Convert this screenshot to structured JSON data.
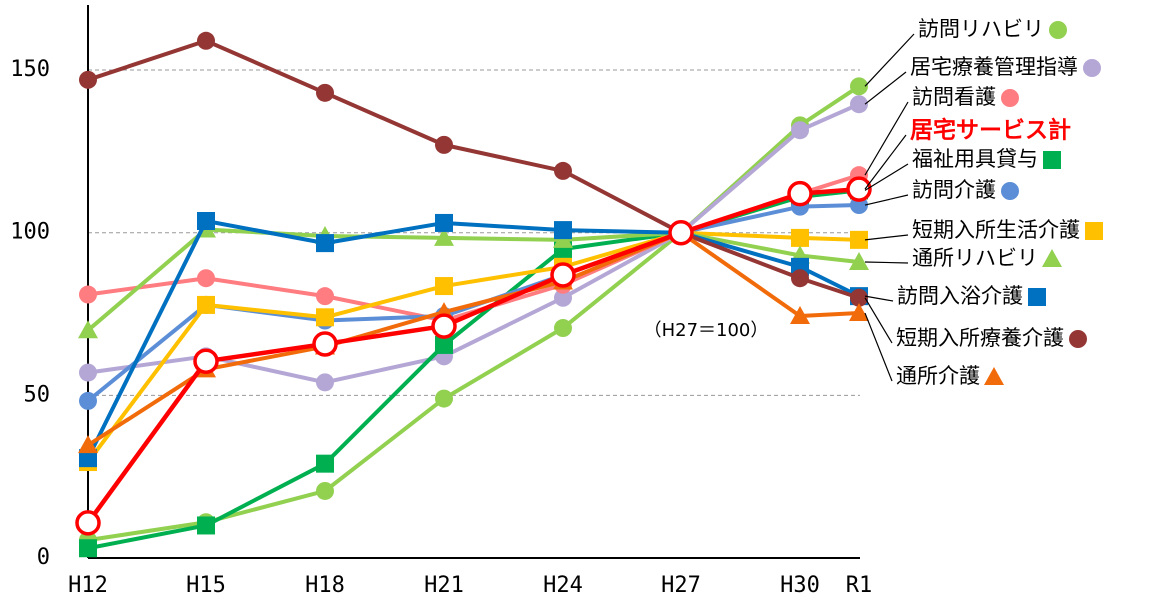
{
  "chart_data": {
    "type": "line",
    "annotation": "（H27＝100）",
    "categories": [
      "H12",
      "H15",
      "H18",
      "H21",
      "H24",
      "H27",
      "H30",
      "R1"
    ],
    "ylim": [
      0,
      170
    ],
    "yticks": [
      0,
      50,
      100,
      150
    ],
    "grid": true,
    "series": [
      {
        "name": "訪問リハビリ",
        "color": "#92d050",
        "marker": "circle",
        "values": [
          5.5,
          11,
          20.6,
          49,
          70.7,
          100,
          133,
          145
        ]
      },
      {
        "name": "居宅療養管理指導",
        "color": "#b4a7d6",
        "marker": "circle",
        "values": [
          57,
          62,
          54,
          62,
          80,
          100,
          131.5,
          139.5
        ]
      },
      {
        "name": "訪問看護",
        "color": "#ff7c80",
        "marker": "circle",
        "values": [
          81,
          86,
          80.5,
          73,
          84,
          100,
          112,
          117.7
        ]
      },
      {
        "name": "居宅サービス計",
        "color": "#ff0000",
        "marker": "open-circle",
        "values": [
          10.8,
          60.5,
          65.8,
          71.3,
          87,
          100,
          112,
          113.4
        ]
      },
      {
        "name": "福祉用具貸与",
        "color": "#00b050",
        "marker": "square",
        "values": [
          3,
          10,
          29,
          65.5,
          95,
          100,
          111,
          113
        ]
      },
      {
        "name": "訪問介護",
        "color": "#5b8ed6",
        "marker": "circle",
        "values": [
          48.3,
          77.8,
          73,
          74.4,
          87,
          100,
          108,
          108.5
        ]
      },
      {
        "name": "短期入所生活介護",
        "color": "#ffc000",
        "marker": "square",
        "values": [
          29.5,
          77.8,
          74,
          83.6,
          89.5,
          100,
          98.4,
          97.8
        ]
      },
      {
        "name": "通所リハビリ",
        "color": "#92d050",
        "marker": "triangle",
        "values": [
          70,
          101,
          99,
          98.4,
          97.8,
          100,
          93,
          91
        ]
      },
      {
        "name": "訪問入浴介護",
        "color": "#0070c0",
        "marker": "square",
        "values": [
          30.7,
          103.6,
          96.8,
          103,
          100.8,
          100,
          89.5,
          80.5
        ]
      },
      {
        "name": "短期入所療養介護",
        "color": "#943634",
        "marker": "circle",
        "values": [
          147,
          159,
          143,
          127,
          119,
          100,
          86,
          80
        ]
      },
      {
        "name": "通所介護",
        "color": "#f26b0a",
        "marker": "triangle",
        "values": [
          34.7,
          58,
          65,
          75.6,
          85,
          100,
          74.4,
          75.3
        ]
      }
    ]
  }
}
